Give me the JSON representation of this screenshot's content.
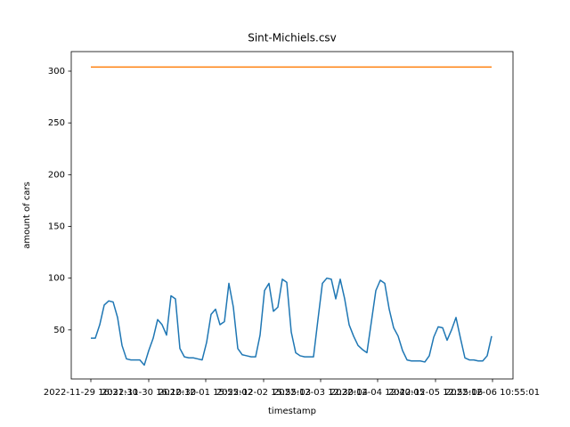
{
  "chart_data": {
    "type": "line",
    "title": "Sint-Michiels.csv",
    "xlabel": "timestamp",
    "ylabel": "amount of cars",
    "xlim": [
      -4.4,
      94.8
    ],
    "xticks": [
      {
        "value": 0,
        "label": "2022-11-29 16:31:30"
      },
      {
        "value": 13,
        "label": "2022-11-30 16:10:30"
      },
      {
        "value": 25.8,
        "label": "2022-12-01 15:55:02"
      },
      {
        "value": 38.8,
        "label": "2022-12-02 15:55:03"
      },
      {
        "value": 51.6,
        "label": "2022-12-03 12:30:04"
      },
      {
        "value": 64.4,
        "label": "2022-12-04 12:40:05"
      },
      {
        "value": 77.4,
        "label": "2022-12-05 12:55:06"
      },
      {
        "value": 90.2,
        "label": "2022-12-06 10:55:01"
      }
    ],
    "ylim": [
      2.6,
      318.9
    ],
    "yticks": [
      50,
      100,
      150,
      200,
      250,
      300
    ],
    "series": [
      {
        "color": "#1f77b4",
        "values": [
          42,
          42,
          55,
          74,
          78,
          77,
          62,
          35,
          22,
          21,
          21,
          21,
          16,
          30,
          42,
          60,
          55,
          45,
          83,
          80,
          32,
          24,
          23,
          23,
          22,
          21,
          38,
          65,
          70,
          55,
          58,
          95,
          72,
          32,
          26,
          25,
          24,
          24,
          45,
          88,
          95,
          68,
          72,
          99,
          96,
          48,
          28,
          25,
          24,
          24,
          24,
          60,
          95,
          100,
          99,
          80,
          99,
          80,
          55,
          44,
          35,
          31,
          28,
          58,
          88,
          98,
          95,
          70,
          52,
          44,
          30,
          21,
          20,
          20,
          20,
          19,
          25,
          43,
          53,
          52,
          40,
          50,
          62,
          42,
          23,
          21,
          21,
          20,
          20,
          25,
          44
        ]
      },
      {
        "color": "#ff7f0e",
        "values": [
          304,
          304,
          304,
          304,
          304,
          304,
          304,
          304,
          304,
          304,
          304,
          304,
          304,
          304,
          304,
          304,
          304,
          304,
          304,
          304,
          304,
          304,
          304,
          304,
          304,
          304,
          304,
          304,
          304,
          304,
          304,
          304,
          304,
          304,
          304,
          304,
          304,
          304,
          304,
          304,
          304,
          304,
          304,
          304,
          304,
          304,
          304,
          304,
          304,
          304,
          304,
          304,
          304,
          304,
          304,
          304,
          304,
          304,
          304,
          304,
          304,
          304,
          304,
          304,
          304,
          304,
          304,
          304,
          304,
          304,
          304,
          304,
          304,
          304,
          304,
          304,
          304,
          304,
          304,
          304,
          304,
          304,
          304,
          304,
          304,
          304,
          304,
          304,
          304,
          304,
          304
        ]
      }
    ]
  }
}
